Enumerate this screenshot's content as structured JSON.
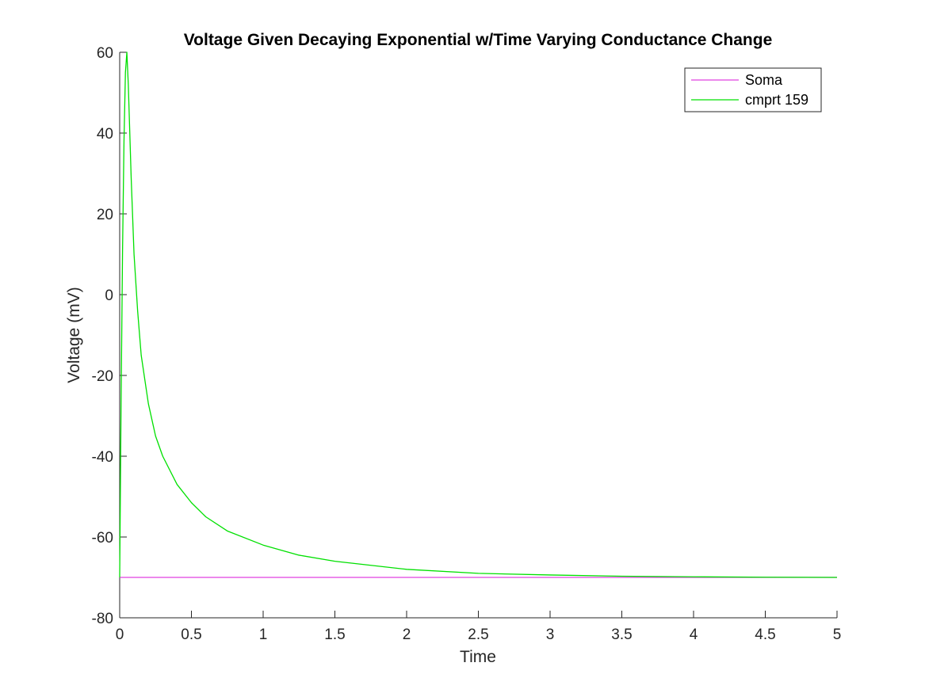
{
  "chart_data": {
    "type": "line",
    "title": "Voltage Given Decaying Exponential w/Time Varying Conductance Change",
    "xlabel": "Time",
    "ylabel": "Voltage (mV)",
    "xlim": [
      0,
      5
    ],
    "ylim": [
      -80,
      60
    ],
    "xticks": [
      0,
      0.5,
      1,
      1.5,
      2,
      2.5,
      3,
      3.5,
      4,
      4.5,
      5
    ],
    "xtick_labels": [
      "0",
      "0.5",
      "1",
      "1.5",
      "2",
      "2.5",
      "3",
      "3.5",
      "4",
      "4.5",
      "5"
    ],
    "yticks": [
      -80,
      -60,
      -40,
      -20,
      0,
      20,
      40,
      60
    ],
    "ytick_labels": [
      "-80",
      "-60",
      "-40",
      "-20",
      "0",
      "20",
      "40",
      "60"
    ],
    "grid": false,
    "legend_position": "top-right",
    "series": [
      {
        "name": "Soma",
        "color": "#e040e0",
        "x": [
          0,
          5
        ],
        "y": [
          -70,
          -70
        ]
      },
      {
        "name": "cmprt 159",
        "color": "#00e000",
        "x": [
          0,
          0.01,
          0.02,
          0.03,
          0.04,
          0.05,
          0.06,
          0.08,
          0.1,
          0.125,
          0.15,
          0.2,
          0.25,
          0.3,
          0.4,
          0.5,
          0.6,
          0.75,
          1.0,
          1.25,
          1.5,
          2.0,
          2.5,
          3.0,
          3.5,
          4.0,
          4.5,
          5.0
        ],
        "y": [
          -70,
          -26,
          11,
          38,
          55,
          60,
          52,
          29,
          10,
          -4,
          -15,
          -27,
          -35,
          -40,
          -47,
          -51.5,
          -55,
          -58.5,
          -62,
          -64.5,
          -66,
          -68,
          -69,
          -69.4,
          -69.7,
          -69.85,
          -69.95,
          -70
        ]
      }
    ]
  }
}
